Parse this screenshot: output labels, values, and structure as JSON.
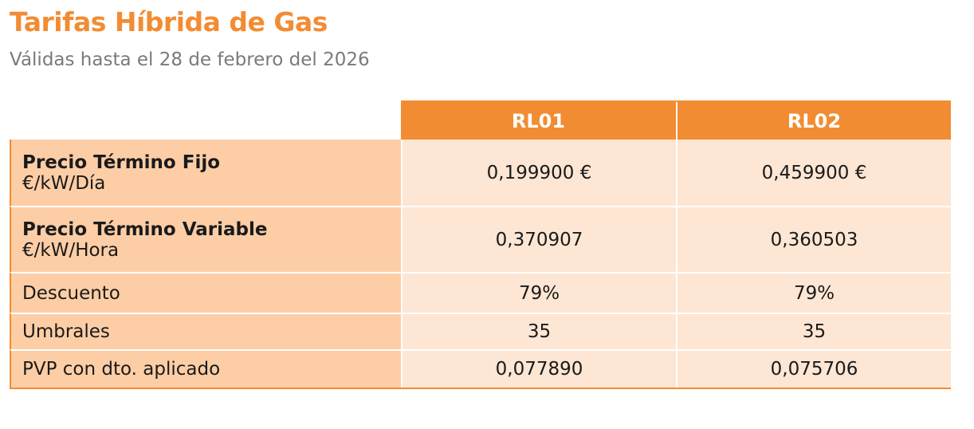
{
  "header": {
    "title": "Tarifas Híbrida de Gas",
    "subtitle": "Válidas hasta el 28 de febrero del 2026"
  },
  "table": {
    "columns": [
      "RL01",
      "RL02"
    ],
    "rows": [
      {
        "label": "Precio Término Fijo",
        "unit": "€/kW/Día",
        "values": [
          "0,199900 €",
          "0,459900 €"
        ]
      },
      {
        "label": "Precio Término Variable",
        "unit": "€/kW/Hora",
        "values": [
          "0,370907",
          "0,360503"
        ]
      },
      {
        "label": "Descuento",
        "values": [
          "79%",
          "79%"
        ]
      },
      {
        "label": "Umbrales",
        "values": [
          "35",
          "35"
        ]
      },
      {
        "label": "PVP con dto. aplicado",
        "values": [
          "0,077890",
          "0,075706"
        ]
      }
    ]
  }
}
